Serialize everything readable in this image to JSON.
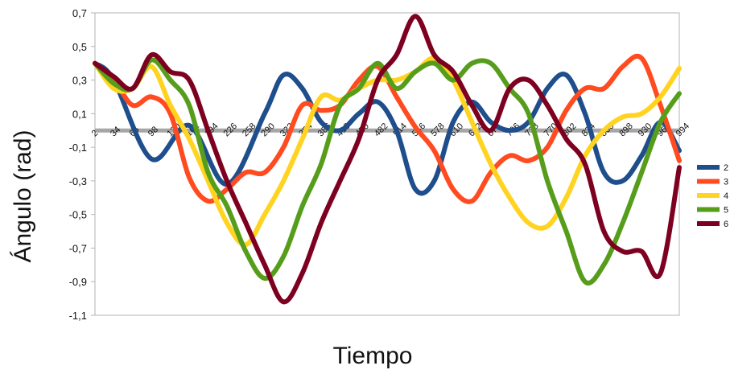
{
  "chart_data": {
    "type": "line",
    "title": "",
    "xlabel": "Tiempo",
    "ylabel": "Ángulo (rad)",
    "ylim": [
      -1.1,
      0.7
    ],
    "xlim": [
      2,
      994
    ],
    "grid": false,
    "legend_position": "right",
    "y_ticks": [
      "0,7",
      "0,5",
      "0,3",
      "0,1",
      "-0,1",
      "-0,3",
      "-0,5",
      "-0,7",
      "-0,9",
      "-1,1"
    ],
    "y_tick_values": [
      0.7,
      0.5,
      0.3,
      0.1,
      -0.1,
      -0.3,
      -0.5,
      -0.7,
      -0.9,
      -1.1
    ],
    "x_ticks": [
      "2",
      "34",
      "66",
      "98",
      "130",
      "162",
      "194",
      "226",
      "258",
      "290",
      "322",
      "354",
      "386",
      "418",
      "450",
      "482",
      "514",
      "546",
      "578",
      "610",
      "642",
      "674",
      "706",
      "738",
      "770",
      "802",
      "834",
      "866",
      "898",
      "930",
      "962",
      "994"
    ],
    "x_tick_values": [
      2,
      34,
      66,
      98,
      130,
      162,
      194,
      226,
      258,
      290,
      322,
      354,
      386,
      418,
      450,
      482,
      514,
      546,
      578,
      610,
      642,
      674,
      706,
      738,
      770,
      802,
      834,
      866,
      898,
      930,
      962,
      994
    ],
    "reference_line": {
      "y": 0.0,
      "color": "#a6a6a6"
    },
    "series": [
      {
        "name": "2",
        "color": "#1f4e8c",
        "x": [
          2,
          34,
          98,
          162,
          226,
          290,
          322,
          354,
          386,
          418,
          450,
          482,
          514,
          546,
          578,
          610,
          642,
          674,
          706,
          738,
          770,
          802,
          834,
          866,
          898,
          930,
          962,
          994
        ],
        "y": [
          0.4,
          0.3,
          -0.17,
          0.03,
          -0.32,
          0.1,
          0.33,
          0.25,
          0.05,
          0.0,
          0.1,
          0.17,
          0.0,
          -0.35,
          -0.3,
          0.05,
          0.17,
          0.05,
          0.0,
          0.05,
          0.25,
          0.33,
          0.1,
          -0.25,
          -0.3,
          -0.15,
          0.05,
          -0.12
        ]
      },
      {
        "name": "3",
        "color": "#ff4b1f",
        "x": [
          2,
          34,
          66,
          98,
          130,
          162,
          194,
          226,
          258,
          290,
          322,
          354,
          386,
          418,
          450,
          482,
          514,
          546,
          578,
          610,
          642,
          674,
          706,
          738,
          770,
          802,
          834,
          866,
          898,
          930,
          962,
          994
        ],
        "y": [
          0.4,
          0.3,
          0.15,
          0.2,
          0.1,
          -0.28,
          -0.42,
          -0.35,
          -0.25,
          -0.25,
          -0.1,
          0.15,
          0.12,
          0.15,
          0.3,
          0.38,
          0.2,
          0.02,
          -0.12,
          -0.35,
          -0.42,
          -0.25,
          -0.15,
          -0.18,
          -0.1,
          0.12,
          0.25,
          0.25,
          0.38,
          0.43,
          0.15,
          -0.18
        ]
      },
      {
        "name": "4",
        "color": "#ffd320",
        "x": [
          2,
          34,
          66,
          98,
          130,
          162,
          194,
          226,
          258,
          290,
          322,
          354,
          386,
          418,
          450,
          482,
          514,
          546,
          578,
          610,
          642,
          674,
          706,
          738,
          770,
          802,
          834,
          866,
          898,
          930,
          962,
          994
        ],
        "y": [
          0.4,
          0.25,
          0.25,
          0.38,
          0.15,
          -0.05,
          -0.3,
          -0.55,
          -0.68,
          -0.5,
          -0.3,
          -0.05,
          0.2,
          0.18,
          0.25,
          0.3,
          0.3,
          0.35,
          0.43,
          0.3,
          0.05,
          -0.2,
          -0.4,
          -0.55,
          -0.57,
          -0.4,
          -0.15,
          0.0,
          0.08,
          0.1,
          0.2,
          0.37
        ]
      },
      {
        "name": "5",
        "color": "#579d1c",
        "x": [
          2,
          34,
          66,
          98,
          130,
          162,
          194,
          226,
          258,
          290,
          322,
          354,
          386,
          418,
          450,
          482,
          514,
          546,
          578,
          610,
          642,
          674,
          706,
          738,
          770,
          802,
          834,
          866,
          898,
          930,
          962,
          994
        ],
        "y": [
          0.4,
          0.28,
          0.25,
          0.42,
          0.3,
          0.15,
          -0.25,
          -0.45,
          -0.72,
          -0.88,
          -0.75,
          -0.45,
          -0.2,
          0.15,
          0.25,
          0.4,
          0.25,
          0.35,
          0.4,
          0.3,
          0.4,
          0.4,
          0.25,
          0.1,
          -0.3,
          -0.6,
          -0.9,
          -0.8,
          -0.55,
          -0.25,
          0.05,
          0.22
        ]
      },
      {
        "name": "6",
        "color": "#7e0021",
        "x": [
          2,
          34,
          66,
          98,
          130,
          162,
          194,
          226,
          258,
          290,
          322,
          354,
          386,
          418,
          450,
          482,
          514,
          546,
          578,
          610,
          642,
          674,
          706,
          738,
          770,
          802,
          834,
          866,
          898,
          930,
          962,
          994
        ],
        "y": [
          0.4,
          0.32,
          0.25,
          0.45,
          0.35,
          0.3,
          0.0,
          -0.3,
          -0.55,
          -0.8,
          -1.02,
          -0.85,
          -0.55,
          -0.3,
          -0.05,
          0.3,
          0.45,
          0.68,
          0.45,
          0.35,
          0.15,
          0.0,
          0.25,
          0.3,
          0.15,
          -0.05,
          -0.2,
          -0.6,
          -0.72,
          -0.72,
          -0.85,
          -0.22
        ]
      }
    ]
  }
}
